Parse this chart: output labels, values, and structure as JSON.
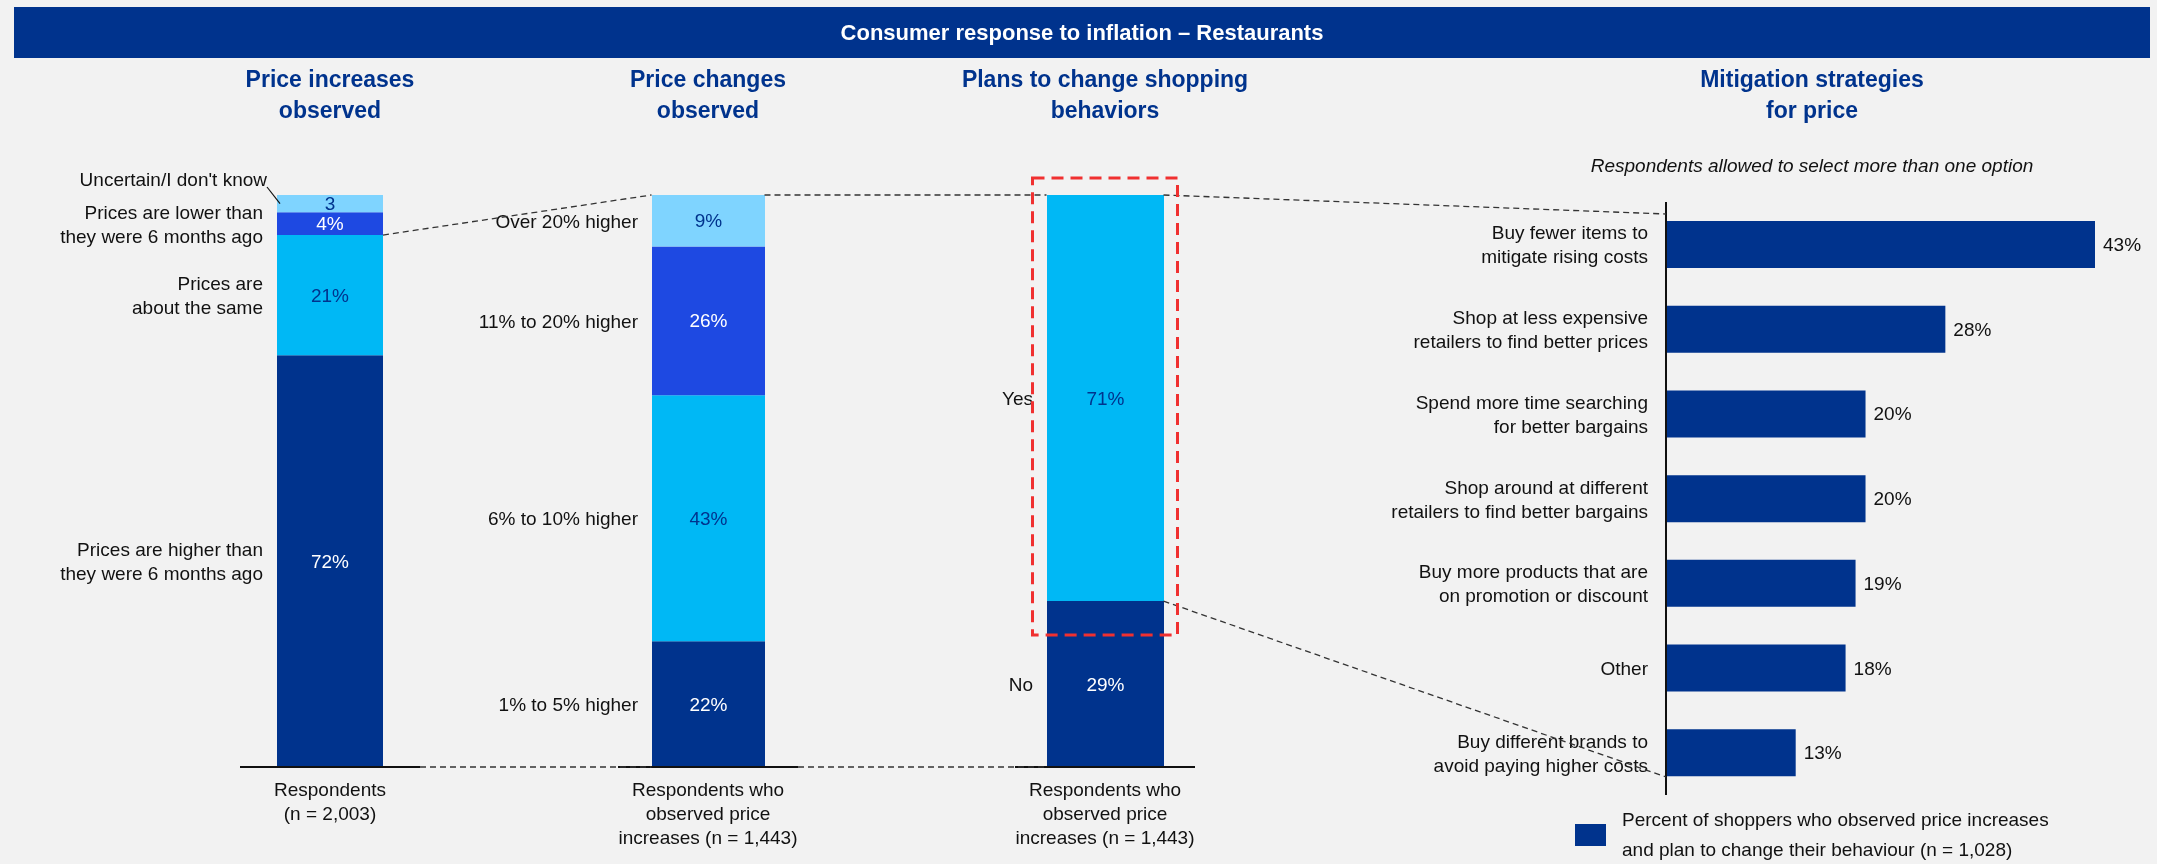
{
  "chart_data": [
    {
      "type": "other",
      "title": "Consumer response to inflation – Restaurants"
    },
    {
      "type": "bar",
      "title": "Price increases observed",
      "stacked": true,
      "categories": [
        "Respondents (n = 2,003)"
      ],
      "series": [
        {
          "name": "Prices are higher than they were 6 months ago",
          "color": "#00338d",
          "values": [
            72
          ],
          "value_labels": [
            "72%"
          ]
        },
        {
          "name": "Prices are about the same",
          "color": "#00b8f5",
          "values": [
            21
          ],
          "value_labels": [
            "21%"
          ]
        },
        {
          "name": "Prices are lower than they were 6 months ago",
          "color": "#1e49e2",
          "values": [
            4
          ],
          "value_labels": [
            "4%"
          ]
        },
        {
          "name": "Uncertain/I don't know",
          "color": "#7fd4ff",
          "values": [
            3
          ],
          "value_labels": [
            "3"
          ]
        }
      ]
    },
    {
      "type": "bar",
      "title": "Price changes observed",
      "stacked": true,
      "categories": [
        "Respondents who observed price increases (n = 1,443)"
      ],
      "series": [
        {
          "name": "1% to 5% higher",
          "color": "#00338d",
          "values": [
            22
          ],
          "value_labels": [
            "22%"
          ]
        },
        {
          "name": "6% to 10% higher",
          "color": "#00b8f5",
          "values": [
            43
          ],
          "value_labels": [
            "43%"
          ]
        },
        {
          "name": "11% to 20% higher",
          "color": "#1e49e2",
          "values": [
            26
          ],
          "value_labels": [
            "26%"
          ]
        },
        {
          "name": "Over 20% higher",
          "color": "#7fd4ff",
          "values": [
            9
          ],
          "value_labels": [
            "9%"
          ]
        }
      ]
    },
    {
      "type": "bar",
      "title": "Plans to change shopping behaviors",
      "stacked": true,
      "categories": [
        "Respondents who observed price increases (n = 1,443)"
      ],
      "series": [
        {
          "name": "No",
          "color": "#00338d",
          "values": [
            29
          ],
          "value_labels": [
            "29%"
          ]
        },
        {
          "name": "Yes",
          "color": "#00b8f5",
          "values": [
            71
          ],
          "value_labels": [
            "71%"
          ]
        }
      ]
    },
    {
      "type": "bar",
      "title": "Mitigation strategies for price",
      "subtitle": "Respondents allowed to select more than one option",
      "orientation": "horizontal",
      "legend": "bottom",
      "categories": [
        "Buy fewer items to mitigate rising costs",
        "Shop at less expensive retailers to find better prices",
        "Spend more time searching for better bargains",
        "Shop around at different retailers to find better bargains",
        "Buy more products that are on promotion or discount",
        "Other",
        "Buy different brands to avoid paying higher costs"
      ],
      "series": [
        {
          "name": "Percent of shoppers who observed price increases and plan to change their behaviour (n = 1,028)",
          "color": "#00338d",
          "values": [
            43,
            28,
            20,
            20,
            19,
            18,
            13
          ],
          "value_labels": [
            "43%",
            "28%",
            "20%",
            "20%",
            "19%",
            "18%",
            "13%"
          ]
        }
      ]
    }
  ]
}
